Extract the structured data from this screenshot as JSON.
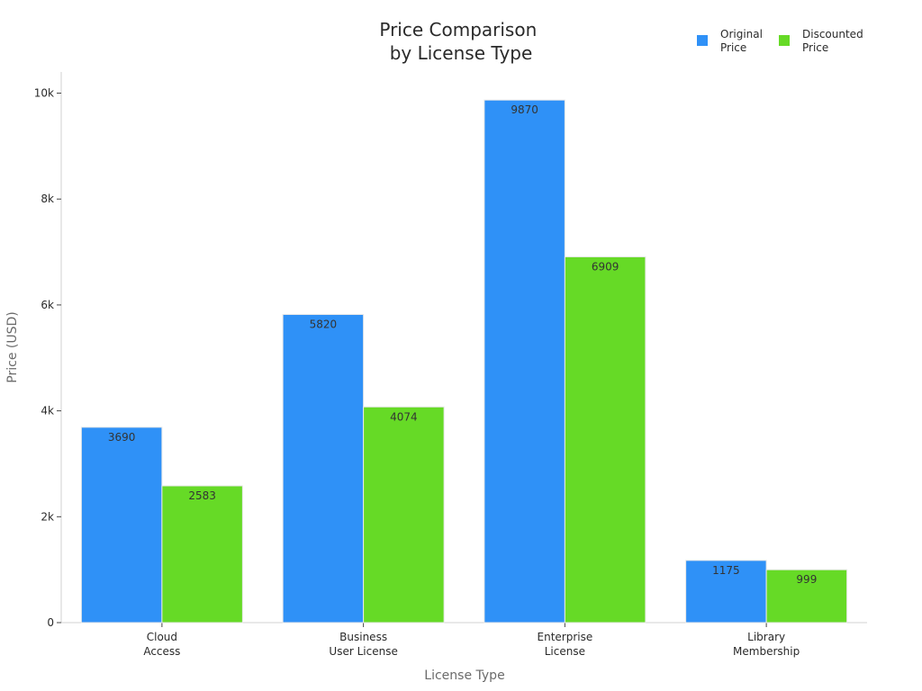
{
  "chart_data": {
    "type": "bar",
    "title_lines": [
      "Price Comparison",
      "by License Type"
    ],
    "xlabel": "License Type",
    "ylabel": "Price (USD)",
    "ylim": [
      0,
      10400
    ],
    "yticks": [
      0,
      2000,
      4000,
      6000,
      8000,
      10000
    ],
    "ytick_labels": [
      "0",
      "2k",
      "4k",
      "6k",
      "8k",
      "10k"
    ],
    "grid": false,
    "legend_position": "top-right",
    "categories": [
      [
        "Cloud",
        "Access"
      ],
      [
        "Business",
        "User License"
      ],
      [
        "Enterprise",
        "License"
      ],
      [
        "Library",
        "Membership"
      ]
    ],
    "series": [
      {
        "name_lines": [
          "Original",
          "Price"
        ],
        "color": "#2f91f7",
        "values": [
          3690,
          5820,
          9870,
          1175
        ]
      },
      {
        "name_lines": [
          "Discounted",
          "Price"
        ],
        "color": "#66da26",
        "values": [
          2583,
          4074,
          6909,
          999
        ]
      }
    ]
  }
}
